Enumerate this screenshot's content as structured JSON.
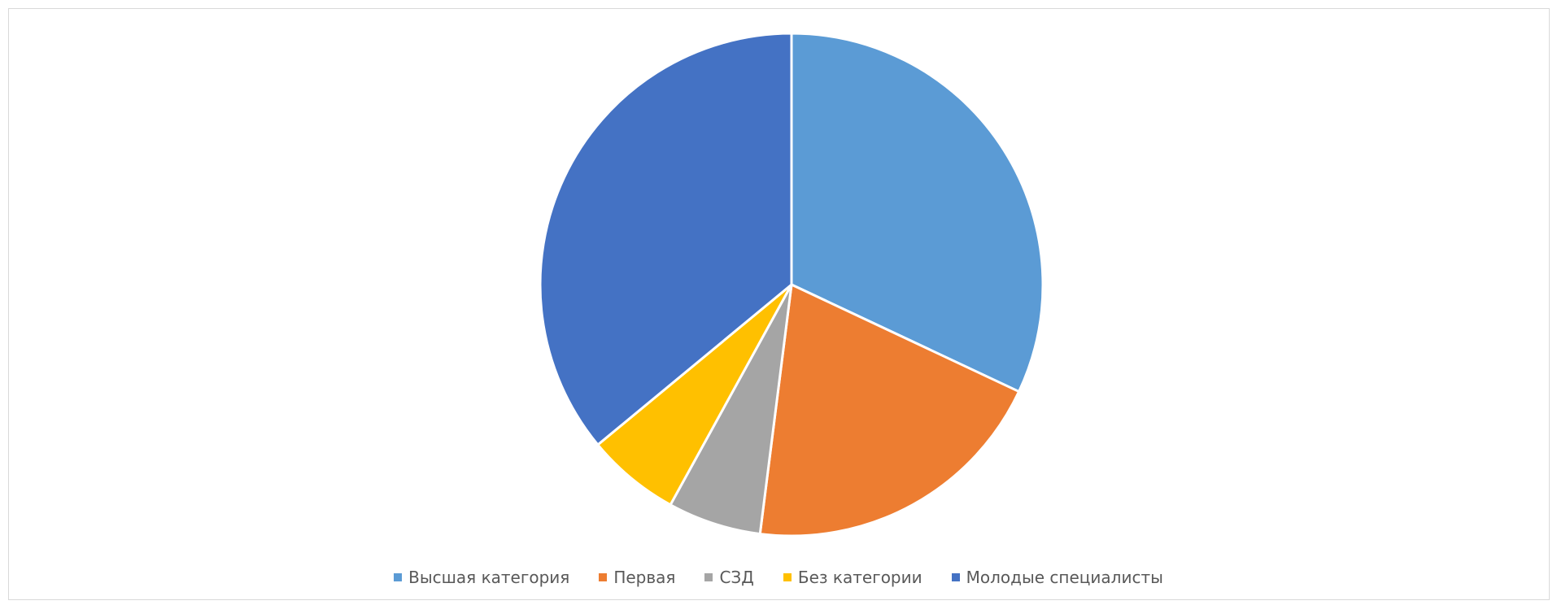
{
  "chart_data": {
    "type": "pie",
    "title": "",
    "categories": [
      "Высшая категория",
      "Первая",
      "СЗД",
      "Без категории",
      "Молодые специалисты"
    ],
    "values": [
      32,
      20,
      6,
      6,
      36
    ],
    "colors": [
      "#5B9BD5",
      "#ED7D31",
      "#A5A5A5",
      "#FFC000",
      "#4472C4"
    ],
    "legend_position": "bottom"
  }
}
